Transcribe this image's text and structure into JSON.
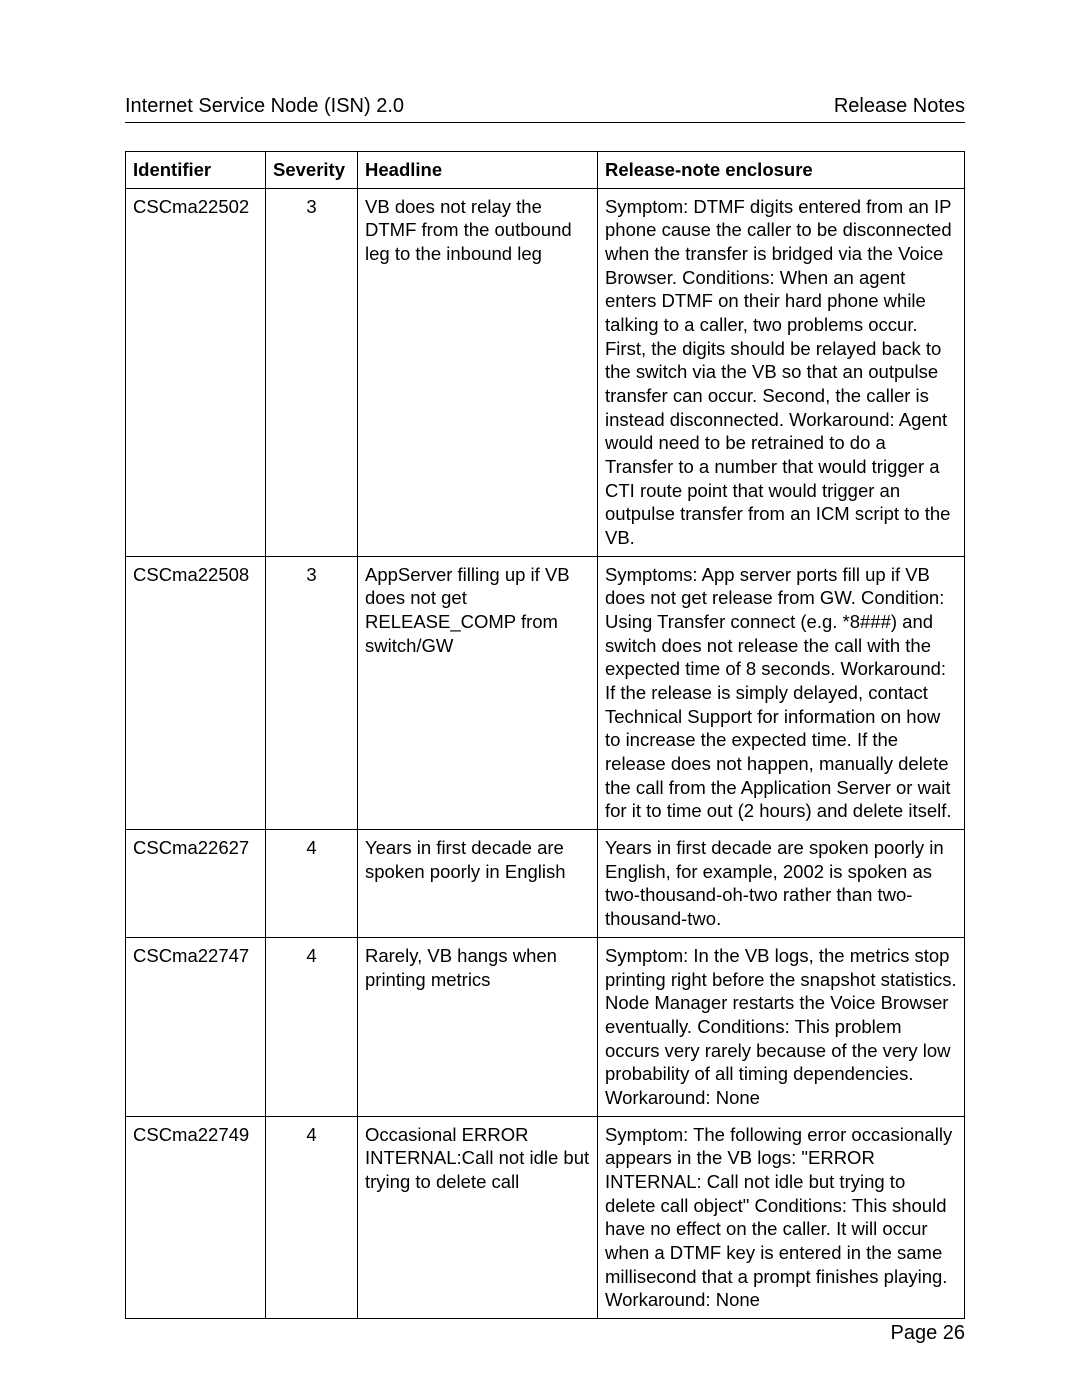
{
  "header_left": "Internet Service Node (ISN) 2.0",
  "header_right": "Release Notes",
  "footer": "Page 26",
  "columns": {
    "identifier": "Identifier",
    "severity": "Severity",
    "headline": "Headline",
    "enclosure": "Release-note enclosure"
  },
  "rows": [
    {
      "identifier": "CSCma22502",
      "severity": "3",
      "headline": "VB does not relay the DTMF from the outbound leg to the inbound leg",
      "enclosure": "Symptom:  DTMF digits entered from an IP phone cause the caller to be disconnected when the transfer is bridged via the Voice Browser.\nConditions: When an agent enters DTMF on their hard phone while talking to a caller, two problems occur. First, the digits should be relayed back to the switch via the VB so that an outpulse transfer can occur. Second, the caller is instead disconnected.\nWorkaround: Agent would need to be retrained to do a Transfer to a number that would trigger a CTI route point that would trigger an outpulse transfer from an ICM script to the VB."
    },
    {
      "identifier": "CSCma22508",
      "severity": "3",
      "headline": "AppServer filling up if VB does not get RELEASE_COMP from switch/GW",
      "enclosure": "Symptoms: App server ports fill up if VB does not get release from GW.\nCondition: Using Transfer connect (e.g. *8###) and switch does not release the call with the expected time of 8 seconds.\nWorkaround: If the release is simply delayed, contact Technical Support for information on how to increase the expected time. If the release does not happen, manually delete the call from the Application Server or wait for it to time out (2 hours) and delete itself."
    },
    {
      "identifier": "CSCma22627",
      "severity": "4",
      "headline": "Years in first decade are spoken poorly in English",
      "enclosure": "Years in first decade are spoken poorly in English, for example, 2002 is spoken as two-thousand-oh-two rather than two-thousand-two."
    },
    {
      "identifier": "CSCma22747",
      "severity": "4",
      "headline": "Rarely, VB hangs when printing metrics",
      "enclosure": "Symptom: In the VB logs, the metrics stop printing right before the snapshot statistics. Node Manager restarts the Voice Browser eventually.\nConditions: This problem occurs very rarely because of the very low probability of all timing dependencies.\nWorkaround: None"
    },
    {
      "identifier": "CSCma22749",
      "severity": "4",
      "headline": "Occasional ERROR INTERNAL:Call not idle but trying to delete call",
      "enclosure": "Symptom: The following error occasionally appears in the VB logs: \"ERROR INTERNAL: Call not idle but trying to delete call object\"\nConditions: This should have no effect on the caller. It will occur when a DTMF key is entered in the same millisecond that a prompt finishes playing.\nWorkaround: None"
    }
  ]
}
